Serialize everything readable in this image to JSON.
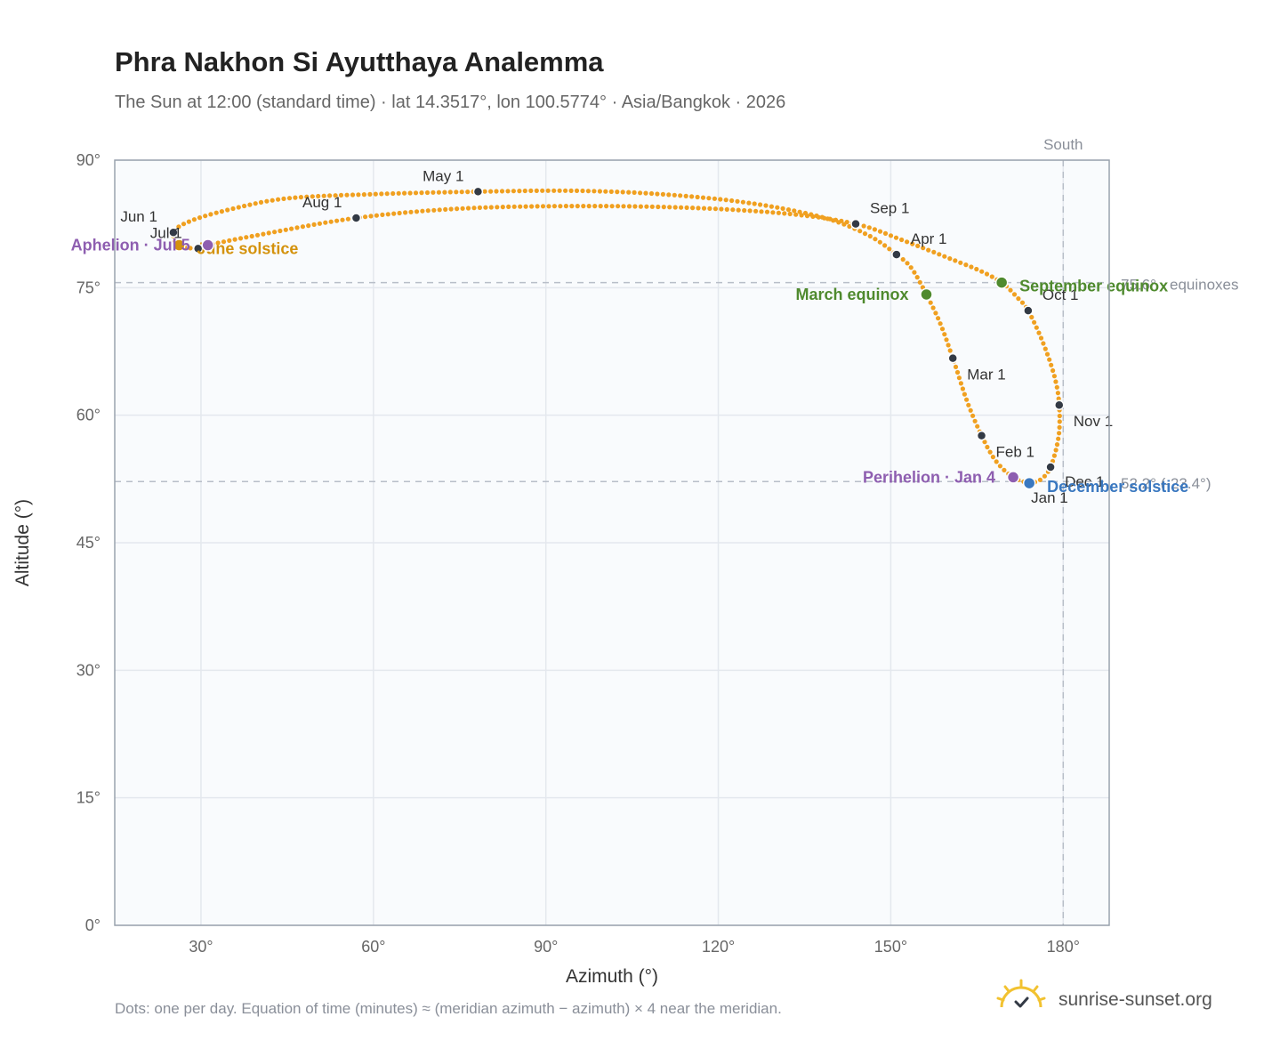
{
  "header": {
    "title": "Phra Nakhon Si Ayutthaya Analemma",
    "subtitle": "The Sun at 12:00 (standard time) · lat 14.3517°, lon 100.5774° · Asia/Bangkok · 2026"
  },
  "footer": {
    "note": "Dots: one per day. Equation of time (minutes) ≈ (meridian azimuth − azimuth) × 4 near the meridian.",
    "brand": "sunrise-sunset.org"
  },
  "colors": {
    "curve": "#f0a020",
    "month_dot": "#333a45",
    "equinox": "#4f8a2e",
    "june_solstice": "#d4920c",
    "december_solstice": "#3a78c0",
    "apsis": "#8e5eb0",
    "plot_bg": "#f9fbfd",
    "grid": "#e4e8ee",
    "frame": "#9aa3ae",
    "reference": "#b8bec8"
  },
  "chart_data": {
    "type": "scatter",
    "xlabel": "Azimuth (°)",
    "ylabel": "Altitude (°)",
    "xlim": [
      15,
      188
    ],
    "ylim": [
      0,
      90
    ],
    "x_ticks": [
      {
        "value": 30,
        "label": "30°"
      },
      {
        "value": 60,
        "label": "60°"
      },
      {
        "value": 90,
        "label": "90°"
      },
      {
        "value": 120,
        "label": "120°"
      },
      {
        "value": 150,
        "label": "150°"
      },
      {
        "value": 180,
        "label": "180°"
      }
    ],
    "y_ticks": [
      {
        "value": 0,
        "label": "0°"
      },
      {
        "value": 15,
        "label": "15°"
      },
      {
        "value": 30,
        "label": "30°"
      },
      {
        "value": 45,
        "label": "45°"
      },
      {
        "value": 60,
        "label": "60°"
      },
      {
        "value": 75,
        "label": "75°"
      },
      {
        "value": 90,
        "label": "90°"
      }
    ],
    "grid": true,
    "reference_lines": {
      "south": {
        "azimuth": 180,
        "label": "South"
      },
      "equinoxes": {
        "altitude": 75.6,
        "label": "75.6° · equinoxes"
      },
      "december": {
        "altitude": 52.2,
        "label": "52.2° (-23.4°)"
      }
    },
    "analemma_path": [
      {
        "az": 174.1,
        "alt": 52.0
      },
      {
        "az": 171.3,
        "alt": 52.7
      },
      {
        "az": 168.3,
        "alt": 54.6
      },
      {
        "az": 165.8,
        "alt": 57.6
      },
      {
        "az": 163.3,
        "alt": 61.6
      },
      {
        "az": 160.8,
        "alt": 66.7
      },
      {
        "az": 158.6,
        "alt": 70.8
      },
      {
        "az": 156.2,
        "alt": 74.2
      },
      {
        "az": 153.6,
        "alt": 77.3
      },
      {
        "az": 151.0,
        "alt": 78.9
      },
      {
        "az": 146.0,
        "alt": 81.2
      },
      {
        "az": 138.0,
        "alt": 83.3
      },
      {
        "az": 125.0,
        "alt": 85.0
      },
      {
        "az": 110.0,
        "alt": 86.0
      },
      {
        "az": 95.0,
        "alt": 86.4
      },
      {
        "az": 78.2,
        "alt": 86.3
      },
      {
        "az": 60.0,
        "alt": 86.0
      },
      {
        "az": 45.0,
        "alt": 85.5
      },
      {
        "az": 35.0,
        "alt": 84.2
      },
      {
        "az": 28.0,
        "alt": 82.8
      },
      {
        "az": 25.2,
        "alt": 81.5
      },
      {
        "az": 26.2,
        "alt": 80.0
      },
      {
        "az": 29.5,
        "alt": 79.6
      },
      {
        "az": 31.2,
        "alt": 80.0
      },
      {
        "az": 40.0,
        "alt": 81.2
      },
      {
        "az": 57.0,
        "alt": 83.2
      },
      {
        "az": 75.0,
        "alt": 84.3
      },
      {
        "az": 95.0,
        "alt": 84.6
      },
      {
        "az": 115.0,
        "alt": 84.4
      },
      {
        "az": 132.0,
        "alt": 83.7
      },
      {
        "az": 143.9,
        "alt": 82.5
      },
      {
        "az": 152.0,
        "alt": 80.6
      },
      {
        "az": 160.0,
        "alt": 78.5
      },
      {
        "az": 165.5,
        "alt": 77.0
      },
      {
        "az": 169.3,
        "alt": 75.6
      },
      {
        "az": 171.8,
        "alt": 74.0
      },
      {
        "az": 173.9,
        "alt": 72.3
      },
      {
        "az": 176.5,
        "alt": 68.5
      },
      {
        "az": 178.5,
        "alt": 64.5
      },
      {
        "az": 179.3,
        "alt": 61.2
      },
      {
        "az": 179.2,
        "alt": 57.5
      },
      {
        "az": 177.8,
        "alt": 53.9
      },
      {
        "az": 176.0,
        "alt": 52.4
      },
      {
        "az": 174.1,
        "alt": 52.0
      }
    ],
    "month_markers": [
      {
        "label": "Jan 1",
        "az": 174.1,
        "alt": 52.0,
        "anchor": "start",
        "dx": 2,
        "dy": 22
      },
      {
        "label": "Feb 1",
        "az": 165.8,
        "alt": 57.6,
        "anchor": "start",
        "dx": 16,
        "dy": 24
      },
      {
        "label": "Mar 1",
        "az": 160.8,
        "alt": 66.7,
        "anchor": "start",
        "dx": 16,
        "dy": 24
      },
      {
        "label": "Apr 1",
        "az": 151.0,
        "alt": 78.9,
        "anchor": "start",
        "dx": 16,
        "dy": -12
      },
      {
        "label": "May 1",
        "az": 78.2,
        "alt": 86.3,
        "anchor": "end",
        "dx": -16,
        "dy": -12
      },
      {
        "label": "Jun 1",
        "az": 25.2,
        "alt": 81.5,
        "anchor": "end",
        "dx": -18,
        "dy": -12
      },
      {
        "label": "Jul 1",
        "az": 29.5,
        "alt": 79.6,
        "anchor": "end",
        "dx": -18,
        "dy": -12
      },
      {
        "label": "Aug 1",
        "az": 57.0,
        "alt": 83.2,
        "anchor": "end",
        "dx": -16,
        "dy": -12
      },
      {
        "label": "Sep 1",
        "az": 143.9,
        "alt": 82.5,
        "anchor": "start",
        "dx": 16,
        "dy": -12
      },
      {
        "label": "Oct 1",
        "az": 173.9,
        "alt": 72.3,
        "anchor": "start",
        "dx": 16,
        "dy": -12
      },
      {
        "label": "Nov 1",
        "az": 179.3,
        "alt": 61.2,
        "anchor": "start",
        "dx": 16,
        "dy": 24
      },
      {
        "label": "Dec 1",
        "az": 177.8,
        "alt": 53.9,
        "anchor": "start",
        "dx": 16,
        "dy": 22
      }
    ],
    "events": [
      {
        "label": "March equinox",
        "az": 156.2,
        "alt": 74.2,
        "color": "#4f8a2e",
        "anchor": "end",
        "dx": -20,
        "dy": 6
      },
      {
        "label": "September equinox",
        "az": 169.3,
        "alt": 75.6,
        "color": "#4f8a2e",
        "anchor": "start",
        "dx": 20,
        "dy": 10
      },
      {
        "label": "June solstice",
        "az": 26.2,
        "alt": 80.0,
        "color": "#d4920c",
        "anchor": "start",
        "dx": 20,
        "dy": 10
      },
      {
        "label": "December solstice",
        "az": 174.1,
        "alt": 52.0,
        "color": "#3a78c0",
        "anchor": "start",
        "dx": 20,
        "dy": 10
      },
      {
        "label": "Aphelion · Jul 5",
        "az": 31.2,
        "alt": 80.0,
        "color": "#8e5eb0",
        "anchor": "end",
        "dx": -20,
        "dy": 6
      },
      {
        "label": "Perihelion · Jan 4",
        "az": 171.3,
        "alt": 52.7,
        "color": "#8e5eb0",
        "anchor": "end",
        "dx": -20,
        "dy": 6
      }
    ]
  }
}
